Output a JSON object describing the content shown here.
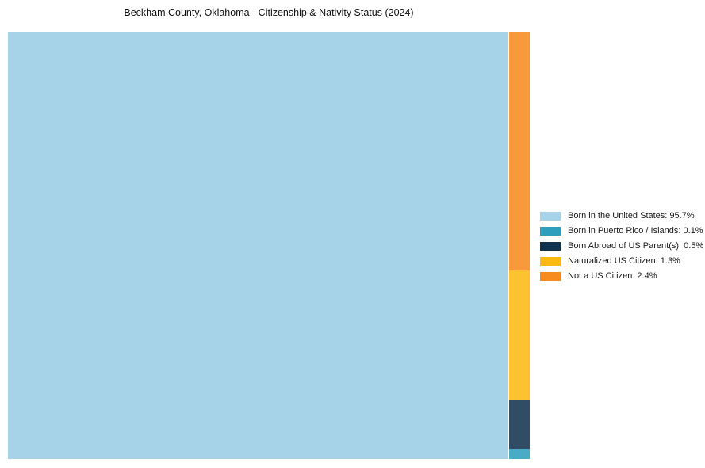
{
  "chart_data": {
    "type": "treemap",
    "title": "Beckham County, Oklahoma - Citizenship & Nativity Status (2024)",
    "unit": "%",
    "legend_position": "right",
    "grid": false,
    "series": [
      {
        "label": "Born in the United States",
        "value": 95.7,
        "color": "#A7D3E9",
        "legend_text": "Born in the United States: 95.7%"
      },
      {
        "label": "Born in Puerto Rico / Islands",
        "value": 0.1,
        "color": "#2E9FBC",
        "legend_text": "Born in Puerto Rico / Islands: 0.1%"
      },
      {
        "label": "Born Abroad of US Parent(s)",
        "value": 0.5,
        "color": "#12334E",
        "legend_text": "Born Abroad of US Parent(s): 0.5%"
      },
      {
        "label": "Naturalized US Citizen",
        "value": 1.3,
        "color": "#FDB913",
        "legend_text": "Naturalized US Citizen: 1.3%"
      },
      {
        "label": "Not a US Citizen",
        "value": 2.4,
        "color": "#F78B1F",
        "legend_text": "Not a US Citizen: 2.4%"
      }
    ],
    "main_tile_label": "Born in the United States",
    "column_order_top_to_bottom": [
      "Not a US Citizen",
      "Naturalized US Citizen",
      "Born Abroad of US Parent(s)",
      "Born in Puerto Rico / Islands"
    ]
  }
}
